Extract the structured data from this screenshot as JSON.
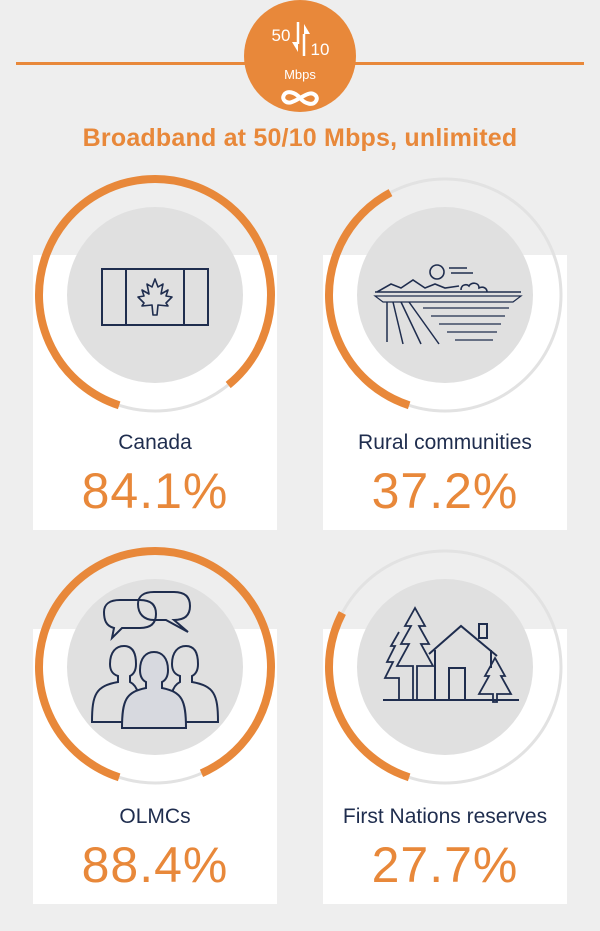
{
  "header": {
    "badge_download": "50",
    "badge_upload": "10",
    "badge_unit": "Mbps",
    "title": "Broadband at 50/10 Mbps, unlimited"
  },
  "colors": {
    "accent": "#e8883a",
    "navy": "#1f2d4e",
    "ring_bg": "#e2e2e2",
    "inner": "#e0e0e0",
    "page_bg": "#eeeeee"
  },
  "chart_data": {
    "type": "donut",
    "title": "Broadband at 50/10 Mbps, unlimited",
    "unit": "%",
    "categories": [
      "Canada",
      "Rural communities",
      "OLMCs",
      "First Nations reserves"
    ],
    "values": [
      84.1,
      37.2,
      88.4,
      27.7
    ],
    "value_labels": [
      "84.1%",
      "37.2%",
      "88.4%",
      "27.7%"
    ],
    "icons": [
      "canada-flag-icon",
      "rural-landscape-icon",
      "community-people-icon",
      "house-trees-icon"
    ]
  }
}
